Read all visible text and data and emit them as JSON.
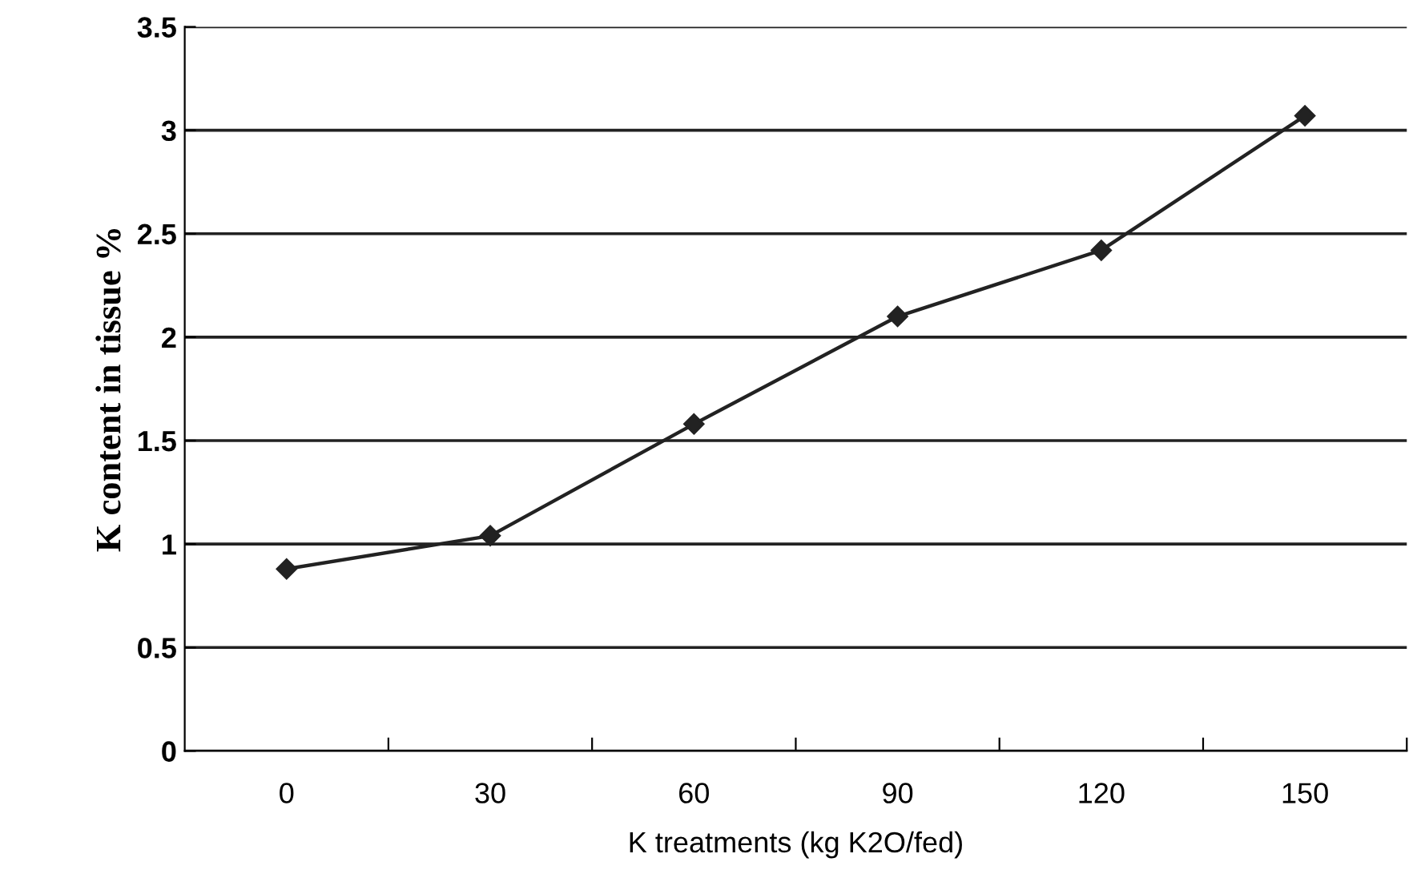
{
  "chart_data": {
    "type": "line",
    "xlabel": "K treatments (kg K2O/fed)",
    "ylabel": "K content in tissue %",
    "categories": [
      "0",
      "30",
      "60",
      "90",
      "120",
      "150"
    ],
    "series": [
      {
        "color": "#222222",
        "values": [
          0.88,
          1.04,
          1.58,
          2.1,
          2.42,
          3.07
        ]
      }
    ],
    "ylim": [
      0,
      3.5
    ],
    "yticks": [
      0,
      0.5,
      1,
      1.5,
      2,
      2.5,
      3,
      3.5
    ],
    "grid": "y",
    "marker": "diamond",
    "line_style": "solid"
  }
}
